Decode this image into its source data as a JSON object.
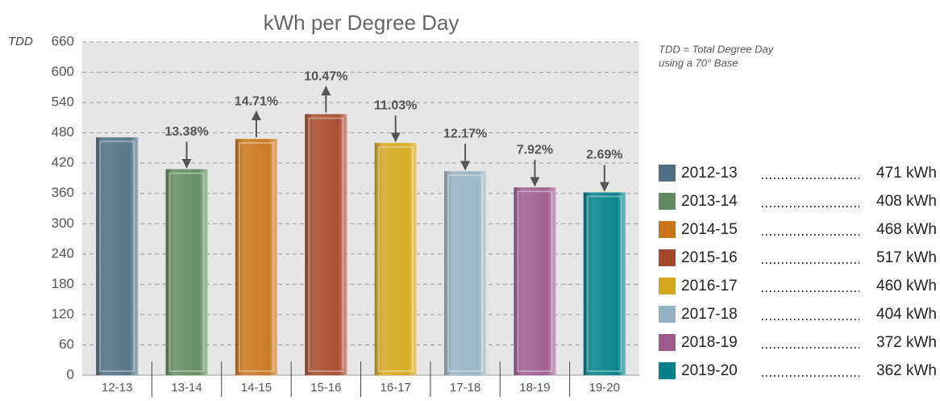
{
  "chart_data": {
    "type": "bar",
    "title": "kWh per Degree Day",
    "y_axis_label": "TDD",
    "notes": [
      "TDD = Total Degree Day",
      "using a 70° Base"
    ],
    "categories": [
      "12-13",
      "13-14",
      "14-15",
      "15-16",
      "16-17",
      "17-18",
      "18-19",
      "19-20"
    ],
    "values": [
      471,
      408,
      468,
      517,
      460,
      404,
      372,
      362
    ],
    "value_labels": [
      "471 kWh",
      "408 kWh",
      "468 kWh",
      "517 kWh",
      "460 kWh",
      "404 kWh",
      "372 kWh",
      "362 kWh"
    ],
    "legend_labels": [
      "2012-13",
      "2013-14",
      "2014-15",
      "2015-16",
      "2016-17",
      "2017-18",
      "2018-19",
      "2019-20"
    ],
    "colors": [
      "#4e6f82",
      "#5f8a5f",
      "#c97418",
      "#a5472a",
      "#d4a81a",
      "#94b3c2",
      "#9e5a8c",
      "#00808a"
    ],
    "change_labels": [
      null,
      "13.38%",
      "14.71%",
      "10.47%",
      "11.03%",
      "12.17%",
      "7.92%",
      "2.69%"
    ],
    "change_directions": [
      null,
      "down",
      "up",
      "up",
      "down",
      "down",
      "down",
      "down"
    ],
    "ylim": [
      0,
      660
    ],
    "yticks": [
      0,
      60,
      120,
      180,
      240,
      300,
      360,
      420,
      480,
      540,
      600,
      660
    ],
    "grid": true
  }
}
